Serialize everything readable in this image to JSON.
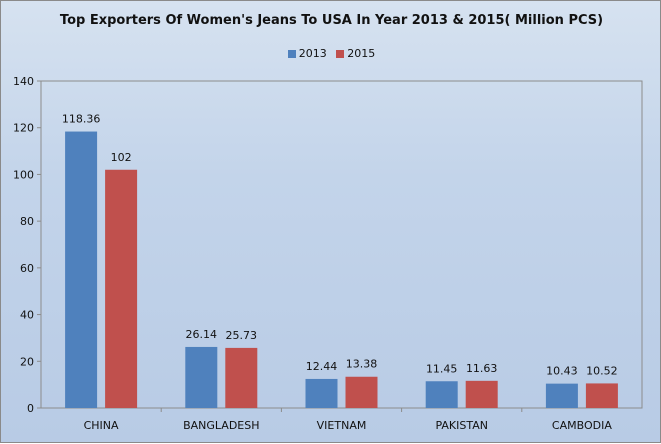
{
  "chart_data": {
    "type": "bar",
    "title": "Top Exporters Of Women's Jeans To USA In Year 2013 & 2015( Million PCS)",
    "categories": [
      "CHINA",
      "BANGLADESH",
      "VIETNAM",
      "PAKISTAN",
      "CAMBODIA"
    ],
    "series": [
      {
        "name": "2013",
        "values": [
          118.36,
          26.14,
          12.44,
          11.45,
          10.43
        ],
        "color": "#4f81bd",
        "labels": [
          "118.36",
          "26.14",
          "12.44",
          "11.45",
          "10.43"
        ]
      },
      {
        "name": "2015",
        "values": [
          102,
          25.73,
          13.38,
          11.63,
          10.52
        ],
        "color": "#c0504d",
        "labels": [
          "102",
          "25.73",
          "13.38",
          "11.63",
          "10.52"
        ]
      }
    ],
    "ylim": [
      0,
      140
    ],
    "yticks": [
      0,
      20,
      40,
      60,
      80,
      100,
      120,
      140
    ],
    "xlabel": "",
    "ylabel": "",
    "legend_position": "top",
    "grid": false
  }
}
